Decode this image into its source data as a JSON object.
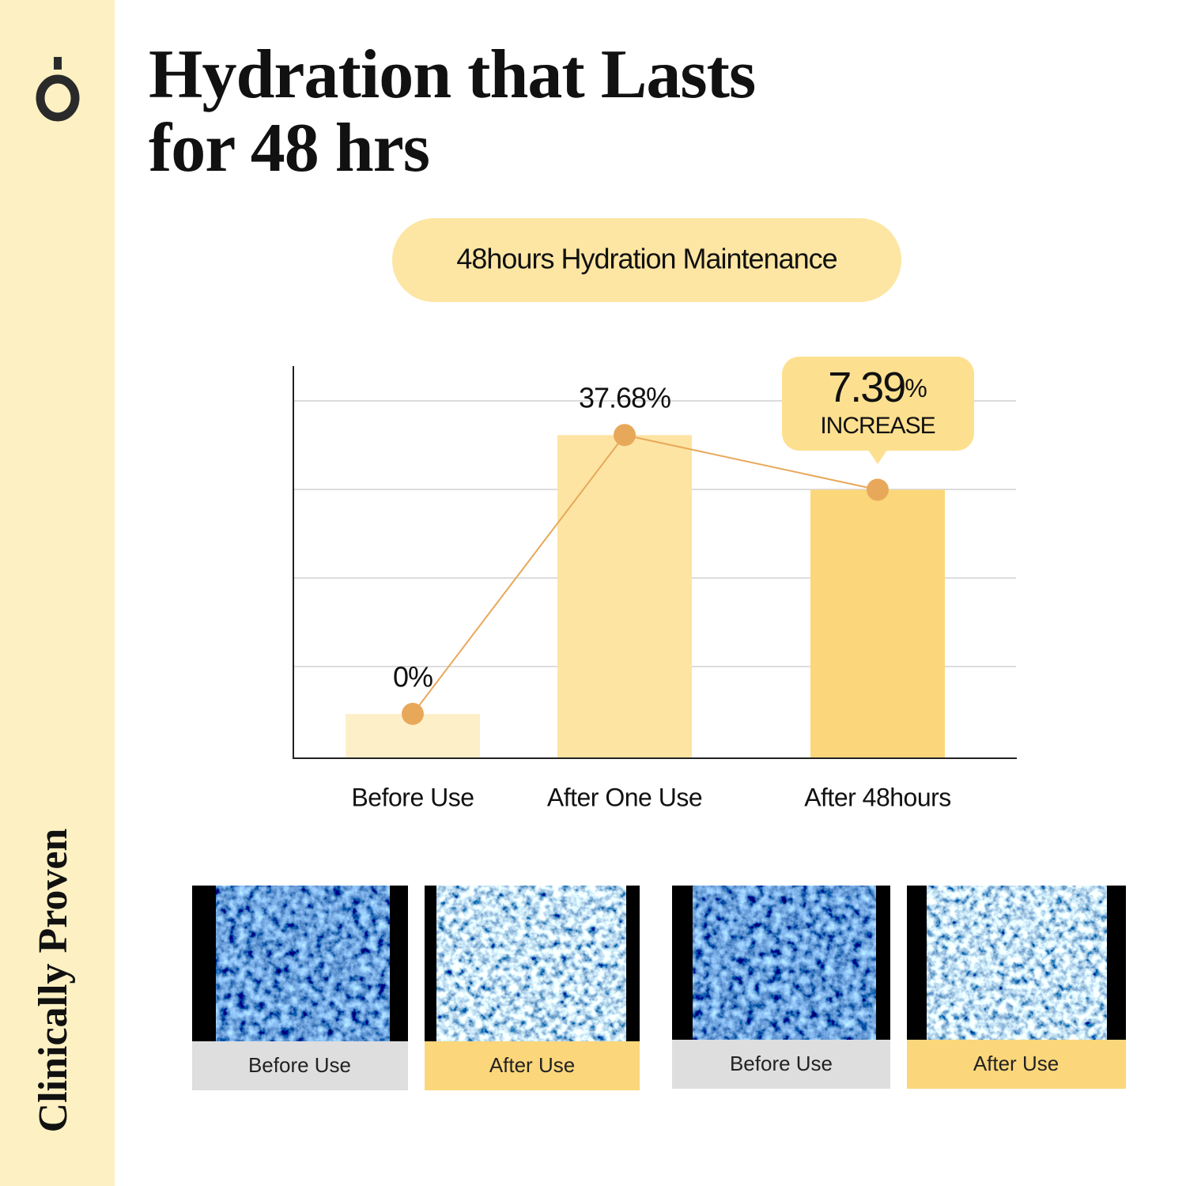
{
  "brand": {
    "tagline": "Clinically Proven"
  },
  "header": {
    "title_line1": "Hydration that Lasts",
    "title_line2": "for 48 hrs"
  },
  "chart_data": {
    "type": "bar",
    "title": "48hours Hydration Maintenance",
    "categories": [
      "Before Use",
      "After One Use",
      "After 48hours"
    ],
    "values": [
      0,
      37.68,
      30.29
    ],
    "value_labels": [
      "0%",
      "37.68%",
      null
    ],
    "colors": [
      "#fdf0c9",
      "#fde4a3",
      "#fbd67b"
    ],
    "line_color": "#e8a85a",
    "ylim": [
      -6,
      47
    ],
    "annotation": {
      "number": "7.39",
      "unit": "%",
      "text": "INCREASE"
    }
  },
  "images": [
    {
      "caption": "Before Use"
    },
    {
      "caption": "After Use"
    },
    {
      "caption": "Before Use"
    },
    {
      "caption": "After Use"
    }
  ]
}
